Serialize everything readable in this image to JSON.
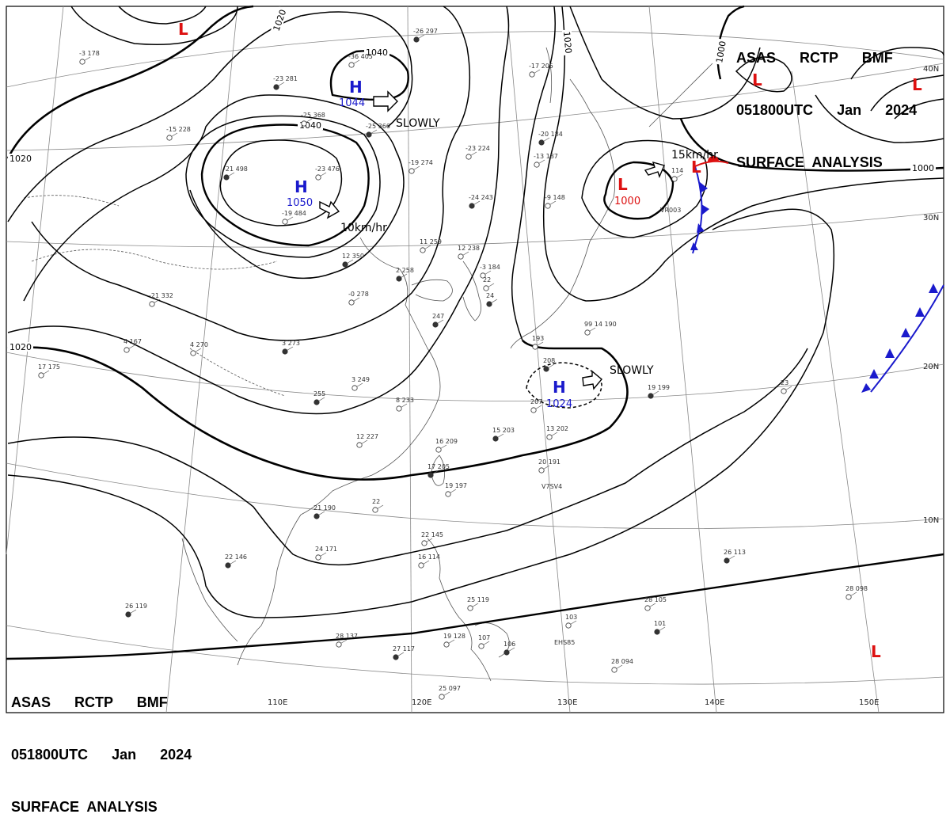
{
  "title_top_right": {
    "line1": "ASAS      RCTP      BMF",
    "line2": "051800UTC      Jan      2024",
    "line3": "SURFACE  ANALYSIS"
  },
  "title_bottom_left": {
    "line1": "ASAS      RCTP      BMF",
    "line2": "051800UTC      Jan      2024",
    "line3": "SURFACE  ANALYSIS"
  },
  "colors": {
    "high": "#1a1acc",
    "low": "#dd1111",
    "cold_front": "#1a1acc",
    "warm_front": "#dd1111",
    "isobar": "#000000",
    "grid": "#888888",
    "coast": "#555555"
  },
  "lon_labels": [
    "110E",
    "120E",
    "130E",
    "140E",
    "150E"
  ],
  "lat_labels": [
    "40N",
    "30N",
    "20N",
    "10N"
  ],
  "isobar_labels": [
    "1020",
    "1040",
    "1040",
    "1020",
    "1020",
    "1020",
    "1000",
    "1000"
  ],
  "pressure_systems": [
    {
      "type": "H",
      "value": "1044",
      "motion": "SLOWLY"
    },
    {
      "type": "H",
      "value": "1050",
      "motion": "10km/hr"
    },
    {
      "type": "H",
      "value": "1024",
      "motion": "SLOWLY"
    },
    {
      "type": "L",
      "value": "1000",
      "motion": "15km/hr"
    },
    {
      "type": "L",
      "value": ""
    },
    {
      "type": "L",
      "value": ""
    },
    {
      "type": "L",
      "value": ""
    },
    {
      "type": "L",
      "value": ""
    },
    {
      "type": "L",
      "value": ""
    }
  ],
  "stations": [
    {
      "text": "-26 297"
    },
    {
      "text": "-3 178"
    },
    {
      "text": "-36 405"
    },
    {
      "text": "-23 281"
    },
    {
      "text": "-25 368"
    },
    {
      "text": "-15 228"
    },
    {
      "text": "-21 498"
    },
    {
      "text": "-23 476"
    },
    {
      "text": "-19 484"
    },
    {
      "text": "-25 366"
    },
    {
      "text": "-19 274"
    },
    {
      "text": "-17 205"
    },
    {
      "text": "-20 184"
    },
    {
      "text": "-23 224"
    },
    {
      "text": "-13 187"
    },
    {
      "text": "-24 243"
    },
    {
      "text": "-9 148"
    },
    {
      "text": "114"
    },
    {
      "text": "12 350"
    },
    {
      "text": "11 259"
    },
    {
      "text": "12 238"
    },
    {
      "text": "2 258"
    },
    {
      "text": "-3 184"
    },
    {
      "text": "22"
    },
    {
      "text": "24"
    },
    {
      "text": "-21 332"
    },
    {
      "text": "-0 278"
    },
    {
      "text": "247"
    },
    {
      "text": "4 167"
    },
    {
      "text": "4 270"
    },
    {
      "text": "3 273"
    },
    {
      "text": "17 175"
    },
    {
      "text": "193"
    },
    {
      "text": "208"
    },
    {
      "text": "99 14 190"
    },
    {
      "text": "3 249"
    },
    {
      "text": "255"
    },
    {
      "text": "8 233"
    },
    {
      "text": "207"
    },
    {
      "text": "19 199"
    },
    {
      "text": "23"
    },
    {
      "text": "12 227"
    },
    {
      "text": "15 203"
    },
    {
      "text": "13 202"
    },
    {
      "text": "16 209"
    },
    {
      "text": "17 205"
    },
    {
      "text": "20 191"
    },
    {
      "text": "19 197"
    },
    {
      "text": "21 190"
    },
    {
      "text": "22"
    },
    {
      "text": "24 171"
    },
    {
      "text": "22 146"
    },
    {
      "text": "22 145"
    },
    {
      "text": "16 114"
    },
    {
      "text": "26 119"
    },
    {
      "text": "25 119"
    },
    {
      "text": "28 137"
    },
    {
      "text": "27 117"
    },
    {
      "text": "19 128"
    },
    {
      "text": "107"
    },
    {
      "text": "106"
    },
    {
      "text": "103"
    },
    {
      "text": "28 105"
    },
    {
      "text": "101"
    },
    {
      "text": "28 094"
    },
    {
      "text": "25 097"
    },
    {
      "text": "26 113"
    },
    {
      "text": "28 098"
    }
  ],
  "front_labels": [
    "VR003",
    "V7SV4",
    "EHS85"
  ]
}
